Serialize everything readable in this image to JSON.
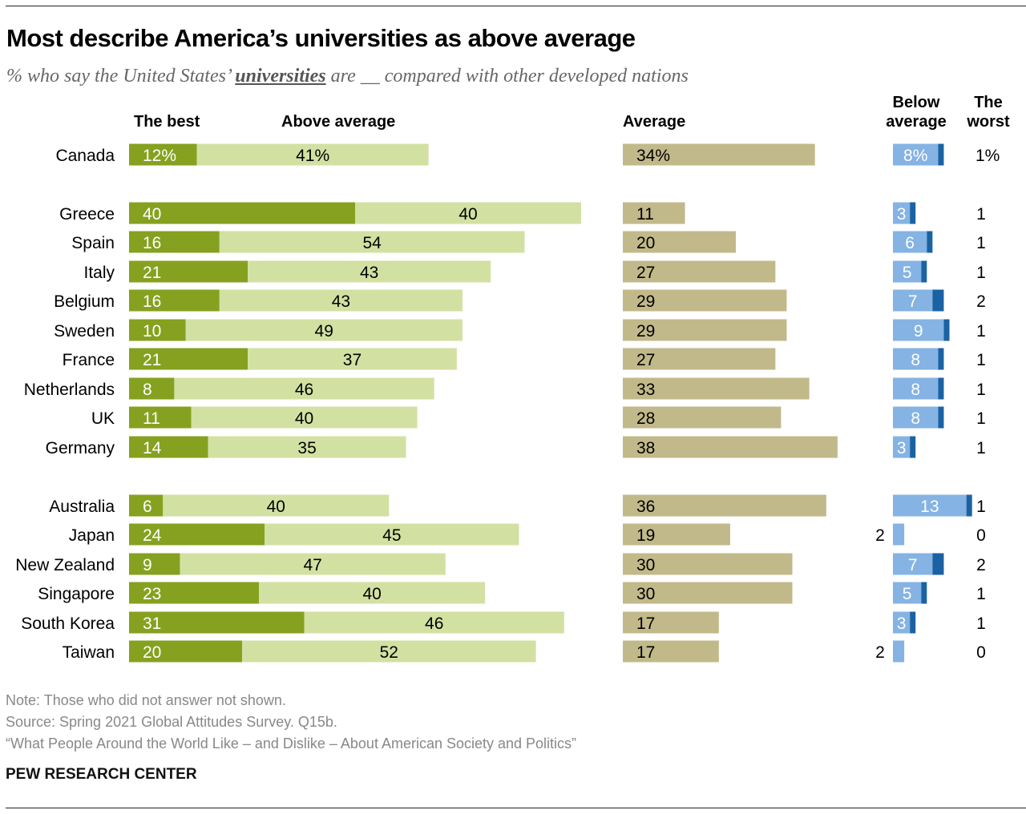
{
  "title": "Most describe America’s universities as above average",
  "subtitle": {
    "before": "% who say the United States’ ",
    "emphasis": "universities",
    "after": " are __ compared with other developed nations"
  },
  "notes": {
    "note": "Note: Those who did not answer not shown.",
    "source": "Source: Spring 2021 Global Attitudes Survey. Q15b.",
    "report": "“What People Around the World Like – and Dislike – About American Society and Politics”",
    "brand": "PEW RESEARCH CENTER"
  },
  "colors": {
    "the_best": "#85a11f",
    "above_average": "#d2e0a2",
    "average": "#c2b98a",
    "below_average": "#85b3e3",
    "the_worst": "#1a62a3"
  },
  "chart_data": {
    "type": "bar",
    "orientation": "horizontal-stacked-diverging",
    "unit": "%",
    "series": [
      {
        "name": "The best",
        "values": [
          12,
          40,
          16,
          21,
          16,
          10,
          21,
          8,
          11,
          14,
          6,
          24,
          9,
          23,
          31,
          20
        ]
      },
      {
        "name": "Above average",
        "values": [
          41,
          40,
          54,
          43,
          43,
          49,
          37,
          46,
          40,
          35,
          40,
          45,
          47,
          40,
          46,
          52
        ]
      },
      {
        "name": "Average",
        "values": [
          34,
          11,
          20,
          27,
          29,
          29,
          27,
          33,
          28,
          38,
          36,
          19,
          30,
          30,
          17,
          17
        ]
      },
      {
        "name": "Below average",
        "values": [
          8,
          3,
          6,
          5,
          7,
          9,
          8,
          8,
          8,
          3,
          13,
          2,
          7,
          5,
          3,
          2
        ]
      },
      {
        "name": "The worst",
        "values": [
          1,
          1,
          1,
          1,
          2,
          1,
          1,
          1,
          1,
          1,
          1,
          0,
          2,
          1,
          1,
          0
        ]
      }
    ],
    "categories": [
      "Canada",
      "Greece",
      "Spain",
      "Italy",
      "Belgium",
      "Sweden",
      "France",
      "Netherlands",
      "UK",
      "Germany",
      "Australia",
      "Japan",
      "New Zealand",
      "Singapore",
      "South Korea",
      "Taiwan"
    ],
    "groups": [
      [
        "Canada"
      ],
      [
        "Greece",
        "Spain",
        "Italy",
        "Belgium",
        "Sweden",
        "France",
        "Netherlands",
        "UK",
        "Germany"
      ],
      [
        "Australia",
        "Japan",
        "New Zealand",
        "Singapore",
        "South Korea",
        "Taiwan"
      ]
    ],
    "column_headers": {
      "the_best": "The best",
      "above_average": "Above average",
      "average": "Average",
      "below_average_1": "Below",
      "below_average_2": "average",
      "the_worst_1": "The",
      "the_worst_2": "worst"
    }
  }
}
